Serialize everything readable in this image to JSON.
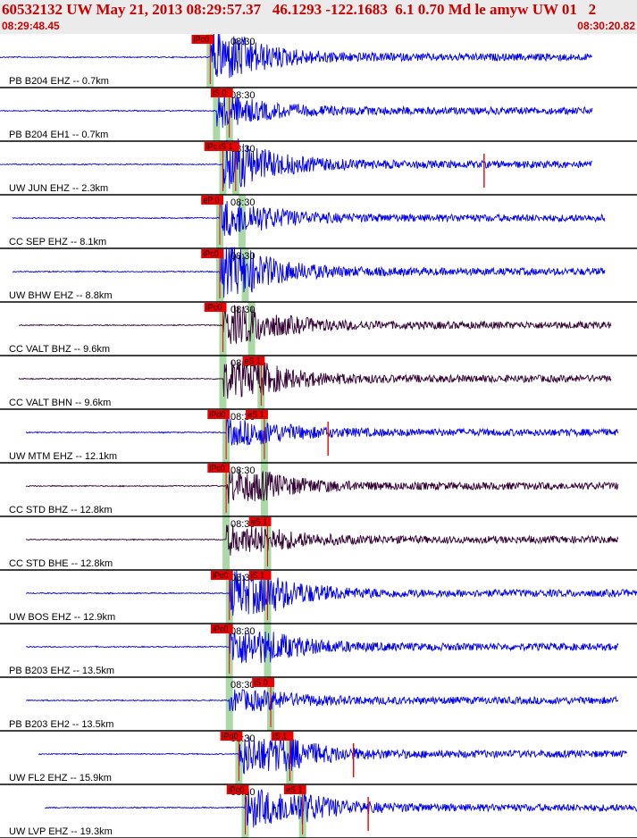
{
  "header": {
    "title": "60532132 UW May 21, 2013 08:29:57.37   46.1293 -122.1683  6.1 0.70 Md le amyw UW 01   2",
    "start_time": "08:29:48.45",
    "end_time": "08:30:20.82"
  },
  "colors": {
    "title": "#cc0000",
    "trace_vertical": "#0000ee",
    "trace_horizontal": "#330033",
    "pick_flag": "#ee0000",
    "pick_band": "#aad9a6",
    "separator": "#000000"
  },
  "time_tick_label": "08:30",
  "traces": [
    {
      "label": "PB B204 EHZ -- 0.7km",
      "color": "blue",
      "p_pick": "iPc0",
      "s_pick": "",
      "p_t": 0.33,
      "s_t": -1,
      "amp": 1.0,
      "start": 0.0,
      "end": 0.93,
      "spikes": [],
      "tick": true
    },
    {
      "label": "PB B204 EH1 -- 0.7km",
      "color": "blue",
      "p_pick": "",
      "s_pick": "iS 0",
      "p_t": 0.34,
      "s_t": 0.36,
      "amp": 0.6,
      "start": 0.0,
      "end": 0.93,
      "spikes": [],
      "tick": true
    },
    {
      "label": "UW JUN EHZ -- 2.3km",
      "color": "blue",
      "p_pick": "iPc0",
      "s_pick": "iS 1",
      "p_t": 0.35,
      "s_t": 0.37,
      "amp": 1.0,
      "start": 0.0,
      "end": 0.93,
      "spikes": [
        0.76
      ],
      "tick": true
    },
    {
      "label": "CC SEP EHZ -- 8.1km",
      "color": "blue",
      "p_pick": "eP 0",
      "s_pick": "",
      "p_t": 0.345,
      "s_t": 0.38,
      "amp": 0.7,
      "start": 0.02,
      "end": 0.95,
      "spikes": [],
      "tick": true
    },
    {
      "label": "UW BHW EHZ -- 8.8km",
      "color": "blue",
      "p_pick": "iPc0",
      "s_pick": "",
      "p_t": 0.345,
      "s_t": 0.385,
      "amp": 1.0,
      "start": 0.02,
      "end": 0.95,
      "spikes": [],
      "tick": true
    },
    {
      "label": "CC VALT BHZ -- 9.6km",
      "color": "dark",
      "p_pick": "iPc0",
      "s_pick": "",
      "p_t": 0.35,
      "s_t": 0.395,
      "amp": 0.8,
      "start": 0.03,
      "end": 0.96,
      "spikes": [],
      "tick": true
    },
    {
      "label": "CC VALT BHN -- 9.6km",
      "color": "dark",
      "p_pick": "",
      "s_pick": "eS 1",
      "p_t": 0.35,
      "s_t": 0.41,
      "amp": 0.8,
      "start": 0.03,
      "end": 0.96,
      "spikes": [],
      "tick": true
    },
    {
      "label": "UW MTM EHZ -- 12.1km",
      "color": "blue",
      "p_pick": "iPd0",
      "s_pick": "eS 1",
      "p_t": 0.355,
      "s_t": 0.415,
      "amp": 0.5,
      "start": 0.04,
      "end": 0.97,
      "spikes": [
        0.515
      ],
      "tick": true
    },
    {
      "label": "CC STD BHZ -- 12.8km",
      "color": "dark",
      "p_pick": "iPc0",
      "s_pick": "",
      "p_t": 0.355,
      "s_t": 0.415,
      "amp": 0.7,
      "start": 0.04,
      "end": 0.97,
      "spikes": [],
      "tick": true
    },
    {
      "label": "CC STD BHE -- 12.8km",
      "color": "dark",
      "p_pick": "",
      "s_pick": "eS 1",
      "p_t": 0.355,
      "s_t": 0.42,
      "amp": 0.6,
      "start": 0.04,
      "end": 0.97,
      "spikes": [],
      "tick": true
    },
    {
      "label": "UW BOS EHZ -- 12.9km",
      "color": "blue",
      "p_pick": "iPc0",
      "s_pick": "iS 1",
      "p_t": 0.36,
      "s_t": 0.42,
      "amp": 1.0,
      "start": 0.04,
      "end": 1.0,
      "spikes": [],
      "tick": true
    },
    {
      "label": "PB B203 EHZ -- 13.5km",
      "color": "blue",
      "p_pick": "iPc0",
      "s_pick": "",
      "p_t": 0.36,
      "s_t": 0.42,
      "amp": 0.8,
      "start": 0.04,
      "end": 0.97,
      "spikes": [],
      "tick": true
    },
    {
      "label": "PB B203 EH2 -- 13.5km",
      "color": "blue",
      "p_pick": "",
      "s_pick": "iS 0",
      "p_t": 0.36,
      "s_t": 0.425,
      "amp": 0.4,
      "start": 0.04,
      "end": 0.97,
      "spikes": [],
      "tick": true
    },
    {
      "label": "UW FL2 EHZ -- 15.9km",
      "color": "blue",
      "p_pick": "iPd0",
      "s_pick": "iS 1",
      "p_t": 0.375,
      "s_t": 0.455,
      "amp": 0.9,
      "start": 0.06,
      "end": 0.985,
      "spikes": [
        0.555
      ],
      "tick": true
    },
    {
      "label": "UW LVP EHZ -- 19.3km",
      "color": "blue",
      "p_pick": "iPc0",
      "s_pick": "eS 1",
      "p_t": 0.385,
      "s_t": 0.475,
      "amp": 0.9,
      "start": 0.07,
      "end": 1.0,
      "spikes": [
        0.578
      ],
      "tick": true
    }
  ]
}
